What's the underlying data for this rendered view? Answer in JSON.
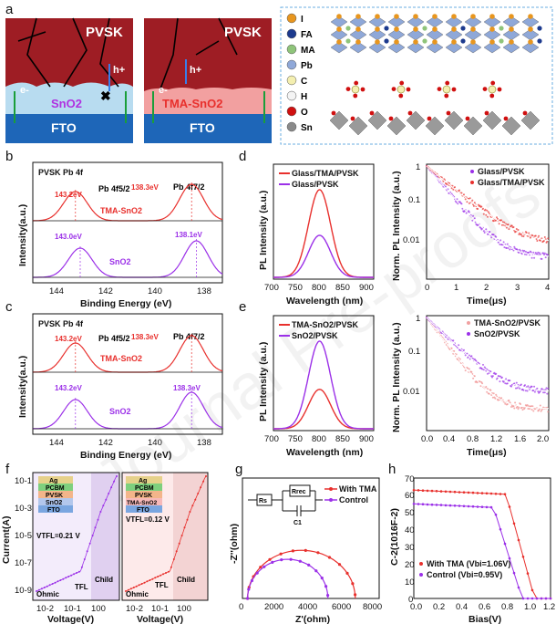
{
  "colors": {
    "red": "#e8302d",
    "purple": "#9b30e8",
    "fto": "#1e66b8",
    "pvsk": "#9e1d24",
    "sno2": "#b8dcf0",
    "black": "#111111"
  },
  "watermark": "Journal Pre-proofs",
  "panel_a": {
    "label": "a",
    "left_pvsk": "PVSK",
    "left_fto": "FTO",
    "left_sno2": "SnO2",
    "h_plus": "h+",
    "e_minus": "e-",
    "right_pvsk": "PVSK",
    "right_fto": "FTO",
    "right_tma": "TMA-SnO2",
    "legend": [
      "I",
      "FA",
      "MA",
      "Pb",
      "C",
      "H",
      "O",
      "Sn"
    ],
    "legend_colors": [
      "#e8961e",
      "#1c3a8e",
      "#8fc47a",
      "#8fa8d8",
      "#f4efb0",
      "#f4f4f4",
      "#d01010",
      "#8a8a8a"
    ]
  },
  "panel_b": {
    "label": "b",
    "title": "PVSK Pb 4f",
    "xlabel": "Binding Energy (eV)",
    "ylabel": "Intensity(a.u.)",
    "xticks": [
      "144",
      "142",
      "140",
      "138"
    ],
    "peak1": "Pb 4f5/2",
    "peak2": "Pb 4f7/2",
    "tma_label": "TMA-SnO2",
    "sno2_label": "SnO2",
    "tma_e1": "143.2eV",
    "tma_e2": "138.3eV",
    "sno2_e1": "143.0eV",
    "sno2_e2": "138.1eV"
  },
  "panel_c": {
    "label": "c",
    "title": "PVSK Pb 4f",
    "xlabel": "Binding Energy (eV)",
    "ylabel": "Intensity(a.u.)",
    "xticks": [
      "144",
      "142",
      "140",
      "138"
    ],
    "peak1": "Pb 4f5/2",
    "peak2": "Pb 4f7/2",
    "tma_label": "TMA-SnO2",
    "sno2_label": "SnO2",
    "tma_e1": "143.2eV",
    "tma_e2": "138.3eV",
    "sno2_e1": "143.2eV",
    "sno2_e2": "138.3eV"
  },
  "panel_d": {
    "label": "d",
    "pl_xlabel": "Wavelength (nm)",
    "pl_ylabel": "PL Intensity (a.u.)",
    "pl_xticks": [
      "700",
      "750",
      "800",
      "850",
      "900"
    ],
    "pl_legend": [
      "Glass/TMA/PVSK",
      "Glass/PVSK"
    ],
    "trpl_xlabel": "Time(μs)",
    "trpl_ylabel": "Norm. PL Intensity (a.u.)",
    "trpl_xticks": [
      "0",
      "1",
      "2",
      "3",
      "4"
    ],
    "trpl_yticks": [
      "1",
      "0.1",
      "0.01"
    ],
    "trpl_legend": [
      "Glass/PVSK",
      "Glass/TMA/PVSK"
    ]
  },
  "panel_e": {
    "label": "e",
    "pl_xlabel": "Wavelength (nm)",
    "pl_ylabel": "PL Intensity (a.u.)",
    "pl_xticks": [
      "700",
      "750",
      "800",
      "850",
      "900"
    ],
    "pl_legend": [
      "TMA-SnO2/PVSK",
      "SnO2/PVSK"
    ],
    "trpl_xlabel": "Time(μs)",
    "trpl_ylabel": "Norm. PL Intensity (a.u.)",
    "trpl_xticks": [
      "0.0",
      "0.4",
      "0.8",
      "1.2",
      "1.6",
      "2.0"
    ],
    "trpl_yticks": [
      "1",
      "0.1",
      "0.01"
    ],
    "trpl_legend": [
      "TMA-SnO2/PVSK",
      "SnO2/PVSK"
    ]
  },
  "panel_f": {
    "label": "f",
    "ylabel": "Current(A)",
    "xlabel": "Voltage(V)",
    "yticks": [
      "10-1",
      "10-3",
      "10-5",
      "10-7",
      "10-9"
    ],
    "xticks": [
      "10-2",
      "10-1",
      "100"
    ],
    "stack_left": [
      "Ag",
      "PCBM",
      "PVSK",
      "SnO2",
      "FTO"
    ],
    "stack_right": [
      "Ag",
      "PCBM",
      "PVSK",
      "TMA-SnO2",
      "FTO"
    ],
    "vtfl_left": "VTFL=0.21 V",
    "vtfl_right": "VTFL=0.12 V",
    "regions": [
      "Ohmic",
      "TFL",
      "Child"
    ]
  },
  "panel_g": {
    "label": "g",
    "xlabel": "Z'(ohm)",
    "ylabel": "-Z''(ohm)",
    "xticks": [
      "0",
      "2000",
      "4000",
      "6000",
      "8000"
    ],
    "yticks": [
      "0",
      "1000",
      "2000",
      "3000",
      "4000"
    ],
    "legend": [
      "With TMA",
      "Control"
    ],
    "circuit": {
      "rs": "Rs",
      "rrec": "Rrec",
      "c1": "C1"
    }
  },
  "panel_h": {
    "label": "h",
    "xlabel": "Bias(V)",
    "ylabel": "C-2(1016F-2)",
    "xticks": [
      "0.0",
      "0.2",
      "0.4",
      "0.6",
      "0.8",
      "1.0",
      "1.2"
    ],
    "yticks": [
      "0",
      "10",
      "20",
      "30",
      "40",
      "50",
      "60",
      "70"
    ],
    "legend": [
      "With TMA (Vbi=1.06V)",
      "Control (Vbi=0.95V)"
    ]
  },
  "chart_data": [
    {
      "type": "line",
      "panel": "d-left",
      "title": "",
      "xlabel": "Wavelength (nm)",
      "ylabel": "PL Intensity (a.u.)",
      "xlim": [
        700,
        900
      ],
      "series": [
        {
          "name": "Glass/TMA/PVSK",
          "peak_x": 792,
          "peak_y": 1.0
        },
        {
          "name": "Glass/PVSK",
          "peak_x": 792,
          "peak_y": 0.48
        }
      ]
    },
    {
      "type": "scatter",
      "panel": "d-right",
      "xlabel": "Time(μs)",
      "ylabel": "Norm. PL Intensity (a.u.)",
      "xlim": [
        0,
        4
      ],
      "yscale": "log",
      "series": [
        {
          "name": "Glass/PVSK",
          "tail": 0.006
        },
        {
          "name": "Glass/TMA/PVSK",
          "tail": 0.012
        }
      ]
    },
    {
      "type": "line",
      "panel": "e-left",
      "xlabel": "Wavelength (nm)",
      "ylabel": "PL Intensity (a.u.)",
      "xlim": [
        700,
        900
      ],
      "series": [
        {
          "name": "TMA-SnO2/PVSK",
          "peak_x": 790,
          "peak_y": 0.45
        },
        {
          "name": "SnO2/PVSK",
          "peak_x": 790,
          "peak_y": 1.0
        }
      ]
    },
    {
      "type": "scatter",
      "panel": "e-right",
      "xlabel": "Time(μs)",
      "ylabel": "Norm. PL Intensity (a.u.)",
      "xlim": [
        0,
        2
      ],
      "yscale": "log",
      "series": [
        {
          "name": "TMA-SnO2/PVSK",
          "tail": 0.006
        },
        {
          "name": "SnO2/PVSK",
          "tail": 0.015
        }
      ]
    },
    {
      "type": "line",
      "panel": "g",
      "xlabel": "Z'(ohm)",
      "ylabel": "-Z''(ohm)",
      "xlim": [
        0,
        8000
      ],
      "ylim": [
        0,
        4000
      ],
      "series": [
        {
          "name": "With TMA",
          "x0": 300,
          "x1": 6600,
          "ymax": 1600
        },
        {
          "name": "Control",
          "x0": 300,
          "x1": 5000,
          "ymax": 1300
        }
      ]
    },
    {
      "type": "line",
      "panel": "h",
      "xlabel": "Bias(V)",
      "ylabel": "C-2(1016F-2)",
      "xlim": [
        0,
        1.2
      ],
      "ylim": [
        0,
        70
      ],
      "series": [
        {
          "name": "With TMA (Vbi=1.06V)",
          "plateau": 63,
          "vbi": 1.06
        },
        {
          "name": "Control (Vbi=0.95V)",
          "plateau": 55,
          "vbi": 0.95
        }
      ]
    }
  ]
}
